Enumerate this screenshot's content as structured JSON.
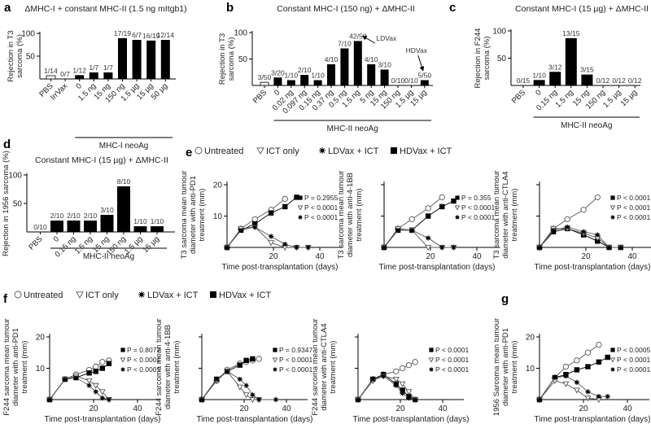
{
  "chart_data": [
    {
      "id": "a",
      "type": "bar",
      "panel_label": "a",
      "title": "ΔMHC-I + constant MHC-II (1.5 ng mItgb1)",
      "ylabel": [
        "Rejection in T3",
        "sarcoma (%)"
      ],
      "ylim": [
        0,
        100
      ],
      "yticks": [
        50,
        100
      ],
      "categories": [
        "PBS",
        "IrrVax",
        "0",
        "1.5 ng",
        "15 ng",
        "150 ng",
        "1.5 µg",
        "15 µg",
        "50 µg"
      ],
      "values": [
        7.1,
        0,
        8.3,
        14.3,
        14.3,
        89.5,
        85.7,
        84.2,
        85.7
      ],
      "labels": [
        "1/14",
        "0/7",
        "1/12",
        "1/7",
        "1/7",
        "17/19",
        "6/7",
        "16/19",
        "12/14"
      ],
      "open_bars": [
        "PBS"
      ],
      "group_label": "MHC-I neoAg",
      "group_from": 2
    },
    {
      "id": "b",
      "type": "bar",
      "panel_label": "b",
      "title": "Constant MHC-I (150 ng) + ΔMHC-II",
      "ylabel": [
        "Rejection in T3",
        "sarcoma (%)"
      ],
      "ylim": [
        0,
        100
      ],
      "yticks": [
        50,
        100
      ],
      "categories": [
        "PBS",
        "0",
        "0.02 ng",
        "0.097 ng",
        "0.15 ng",
        "0.37 ng",
        "0.5 ng",
        "1.5 ng",
        "5 ng",
        "15 ng",
        "150 ng",
        "1.5 µg",
        "15 µg"
      ],
      "values": [
        6,
        15,
        10,
        20,
        10,
        40,
        70,
        84,
        40,
        30,
        0,
        0,
        10
      ],
      "labels": [
        "3/50",
        "3/20",
        "1/10",
        "2/10",
        "1/10",
        "4/10",
        "7/10",
        "42/50",
        "4/10",
        "3/10",
        "0/10",
        "0/10",
        "5/50"
      ],
      "open_bars": [
        "PBS"
      ],
      "annotations": [
        {
          "text": "LDVax",
          "category": "1.5 ng"
        },
        {
          "text": "HDVax",
          "category": "15 µg"
        }
      ],
      "group_label": "MHC-II neoAg",
      "group_from": 1
    },
    {
      "id": "c",
      "type": "bar",
      "panel_label": "c",
      "title": "Constant MHC-I (15 µg) + ΔMHC-II",
      "ylabel": [
        "Rejection in F244",
        "sarcoma (%)"
      ],
      "ylim": [
        0,
        100
      ],
      "yticks": [
        50,
        100
      ],
      "categories": [
        "PBS",
        "0",
        "0.15 ng",
        "1.5 ng",
        "15 ng",
        "150 ng",
        "1.5 µg",
        "15 µg"
      ],
      "values": [
        0,
        10,
        25,
        86.7,
        20,
        0,
        0,
        0
      ],
      "labels": [
        "0/15",
        "1/10",
        "3/12",
        "13/15",
        "3/15",
        "0/12",
        "0/12",
        "0/12"
      ],
      "open_bars": [],
      "group_label": "MHC-II neoAg",
      "group_from": 1
    },
    {
      "id": "d",
      "type": "bar",
      "panel_label": "d",
      "title": "Constant MHC-I (15 µg) + ΔMHC-II",
      "ylabel": [
        "Rejection in 1956 sarcoma (%)"
      ],
      "ylim": [
        0,
        100
      ],
      "yticks": [
        50,
        100
      ],
      "categories": [
        "PBS",
        "0",
        "0.15 ng",
        "1.5 ng",
        "15 ng",
        "150 ng",
        "1.5 µg",
        "15 µg"
      ],
      "values": [
        0,
        20,
        20,
        20,
        30,
        80,
        10,
        10
      ],
      "labels": [
        "0/10",
        "2/10",
        "2/10",
        "2/10",
        "3/10",
        "8/10",
        "1/10",
        "1/10"
      ],
      "open_bars": [],
      "group_label": "MHC-II neoAg",
      "group_from": 1
    },
    {
      "id": "e1",
      "type": "line",
      "panel_label": "e",
      "ylabel": [
        "T3 sarcoma mean tumour",
        "diameter with anti-PD1",
        "treatment (mm)"
      ],
      "xlabel": "Time post-transplantation (days)",
      "xlim": [
        0,
        50
      ],
      "ylim": [
        0,
        20
      ],
      "xticks": [
        20,
        40
      ],
      "yticks": [
        10,
        20
      ],
      "ytick_labels": true,
      "series": [
        {
          "key": "untreated",
          "x": [
            0,
            6,
            12,
            19,
            25
          ],
          "y": [
            0,
            6,
            9,
            12,
            15.5
          ]
        },
        {
          "key": "hdvax",
          "x": [
            0,
            6,
            12,
            19,
            25,
            30
          ],
          "y": [
            0,
            5.5,
            7.5,
            11,
            13,
            16
          ]
        },
        {
          "key": "ict",
          "x": [
            0,
            6,
            12,
            19,
            25,
            30,
            35
          ],
          "y": [
            0,
            6,
            6.5,
            1.5,
            0,
            0,
            0
          ]
        },
        {
          "key": "ldvax",
          "x": [
            0,
            6,
            12,
            19,
            25,
            30,
            35
          ],
          "y": [
            0,
            5.5,
            6.5,
            3.5,
            1,
            0,
            0
          ]
        }
      ],
      "pvalues": [
        {
          "key": "hdvax",
          "text": "P = 0.2955"
        },
        {
          "key": "ict",
          "text": "P < 0.0001"
        },
        {
          "key": "ldvax",
          "text": "P < 0.0001"
        }
      ]
    },
    {
      "id": "e2",
      "type": "line",
      "ylabel": [
        "T3 sarcoma mean tumour",
        "diameter with anti-4-1BB",
        "treatment (mm)"
      ],
      "xlabel": "Time post-transplantation (days)",
      "xlim": [
        0,
        50
      ],
      "ylim": [
        0,
        20
      ],
      "xticks": [
        20,
        40
      ],
      "yticks": [
        10,
        20
      ],
      "ytick_labels": false,
      "series": [
        {
          "key": "untreated",
          "x": [
            0,
            6,
            12,
            19,
            25
          ],
          "y": [
            0,
            6,
            9,
            12.5,
            16
          ]
        },
        {
          "key": "hdvax",
          "x": [
            0,
            6,
            12,
            19,
            25,
            30
          ],
          "y": [
            0,
            5.5,
            5.5,
            10,
            13,
            14.8
          ]
        },
        {
          "key": "ict",
          "x": [
            0,
            6,
            12,
            19,
            25,
            30
          ],
          "y": [
            0,
            6,
            5.5,
            0,
            0,
            0
          ]
        },
        {
          "key": "ldvax",
          "x": [
            0,
            6,
            12,
            19,
            25,
            30
          ],
          "y": [
            0,
            5.5,
            5.5,
            3,
            0,
            0
          ]
        }
      ],
      "pvalues": [
        {
          "key": "hdvax",
          "text": "P = 0.355"
        },
        {
          "key": "ict",
          "text": "P < 0.0001"
        },
        {
          "key": "ldvax",
          "text": "P < 0.0001"
        }
      ]
    },
    {
      "id": "e3",
      "type": "line",
      "ylabel": [
        "T3 sarcoma mean tumour",
        "diameter with anti-CTLA4",
        "treatment (mm)"
      ],
      "xlabel": "Time post-transplantation (days)",
      "xlim": [
        0,
        50
      ],
      "ylim": [
        0,
        20
      ],
      "xticks": [
        20,
        40
      ],
      "yticks": [
        10,
        20
      ],
      "ytick_labels": false,
      "series": [
        {
          "key": "untreated",
          "x": [
            0,
            6,
            12,
            19,
            25
          ],
          "y": [
            0,
            6,
            9,
            12,
            16
          ]
        },
        {
          "key": "hdvax",
          "x": [
            0,
            6,
            12,
            19,
            25,
            30,
            35
          ],
          "y": [
            0,
            5,
            6,
            4,
            2,
            0,
            0
          ]
        },
        {
          "key": "ict",
          "x": [
            0,
            6,
            12,
            19,
            25,
            30,
            35
          ],
          "y": [
            0,
            6,
            6,
            4.5,
            3,
            0,
            0
          ]
        },
        {
          "key": "ldvax",
          "x": [
            0,
            6,
            12,
            19,
            25,
            30,
            35
          ],
          "y": [
            0,
            5.5,
            6.5,
            5,
            4,
            0,
            0
          ]
        }
      ],
      "pvalues": [
        {
          "key": "hdvax",
          "text": "P < 0.0001"
        },
        {
          "key": "ict",
          "text": "P < 0.0001"
        },
        {
          "key": "ldvax",
          "text": "P < 0.0001"
        }
      ]
    },
    {
      "id": "f1",
      "type": "line",
      "panel_label": "f",
      "ylabel": [
        "F244 sarcoma mean tumour",
        "diameter with anti-PD1",
        "treatment (mm)"
      ],
      "xlabel": "Time post-transplantation (days)",
      "xlim": [
        0,
        50
      ],
      "ylim": [
        0,
        20
      ],
      "xticks": [
        20,
        40
      ],
      "yticks": [
        10,
        20
      ],
      "ytick_labels": true,
      "series": [
        {
          "key": "untreated",
          "x": [
            0,
            7,
            12,
            18,
            21,
            24,
            27
          ],
          "y": [
            0,
            6.5,
            8,
            9.5,
            10.5,
            12,
            12.5
          ]
        },
        {
          "key": "hdvax",
          "x": [
            0,
            7,
            12,
            18,
            21,
            24,
            27
          ],
          "y": [
            0,
            6.5,
            7,
            8.5,
            9,
            10,
            11.5
          ]
        },
        {
          "key": "ict",
          "x": [
            0,
            7,
            12,
            18,
            21,
            24,
            27
          ],
          "y": [
            0,
            6.5,
            7.5,
            6,
            4.5,
            2.5,
            0
          ]
        },
        {
          "key": "ldvax",
          "x": [
            0,
            7,
            12,
            18,
            21,
            24,
            27
          ],
          "y": [
            0,
            6.5,
            7,
            4.5,
            2.5,
            0.5,
            0
          ]
        }
      ],
      "pvalues": [
        {
          "key": "hdvax",
          "text": "P = 0.8077"
        },
        {
          "key": "ict",
          "text": "P < 0.0001"
        },
        {
          "key": "ldvax",
          "text": "P < 0.0001"
        }
      ]
    },
    {
      "id": "f2",
      "type": "line",
      "ylabel": [
        "F244 sarcoma mean tumour",
        "diameter with anti-4-1BB",
        "treatment (mm)"
      ],
      "xlabel": "Time post-transplantation (days)",
      "xlim": [
        0,
        50
      ],
      "ylim": [
        0,
        20
      ],
      "xticks": [
        20,
        40
      ],
      "yticks": [
        10,
        20
      ],
      "ytick_labels": false,
      "series": [
        {
          "key": "untreated",
          "x": [
            0,
            7,
            12,
            18,
            21,
            24,
            27
          ],
          "y": [
            0,
            6,
            9.5,
            11.5,
            12,
            12.5,
            13
          ]
        },
        {
          "key": "hdvax",
          "x": [
            0,
            7,
            12,
            18,
            21,
            24
          ],
          "y": [
            0,
            6.5,
            9,
            11,
            12.5,
            13
          ]
        },
        {
          "key": "ict",
          "x": [
            0,
            7,
            12,
            18,
            21,
            24,
            27
          ],
          "y": [
            0,
            6,
            9,
            4,
            1.5,
            0,
            0
          ]
        },
        {
          "key": "ldvax",
          "x": [
            0,
            7,
            12,
            18,
            21,
            24,
            27,
            35
          ],
          "y": [
            0,
            6.5,
            9,
            6.5,
            4.5,
            1.5,
            0,
            0
          ]
        }
      ],
      "pvalues": [
        {
          "key": "hdvax",
          "text": "P = 0.9347"
        },
        {
          "key": "ict",
          "text": "P < 0.0001"
        },
        {
          "key": "ldvax",
          "text": "P < 0.0001"
        }
      ]
    },
    {
      "id": "f3",
      "type": "line",
      "ylabel": [
        "F244 sarcoma mean tumour",
        "diameter with anti-CTLA4",
        "treatment (mm)"
      ],
      "xlabel": "Time post-transplantation (days)",
      "xlim": [
        0,
        50
      ],
      "ylim": [
        0,
        20
      ],
      "xticks": [
        20,
        40
      ],
      "yticks": [
        10,
        20
      ],
      "ytick_labels": false,
      "series": [
        {
          "key": "untreated",
          "x": [
            0,
            7,
            12,
            18,
            21,
            24,
            27
          ],
          "y": [
            0,
            6.5,
            8,
            9,
            10,
            11,
            12
          ]
        },
        {
          "key": "hdvax",
          "x": [
            0,
            7,
            12,
            18,
            21,
            24,
            27
          ],
          "y": [
            0,
            6.5,
            8,
            5,
            3,
            1,
            0
          ]
        },
        {
          "key": "ict",
          "x": [
            0,
            7,
            12,
            18,
            21,
            24,
            27
          ],
          "y": [
            0,
            6,
            7.5,
            6.5,
            5,
            2.5,
            0
          ]
        },
        {
          "key": "ldvax",
          "x": [
            0,
            7,
            12,
            18,
            21,
            24,
            27
          ],
          "y": [
            0,
            6.5,
            7.5,
            4.5,
            2,
            0.5,
            0
          ]
        }
      ],
      "pvalues": [
        {
          "key": "hdvax",
          "text": "P < 0.0001"
        },
        {
          "key": "ict",
          "text": "P < 0.0001"
        },
        {
          "key": "ldvax",
          "text": "P < 0.0001"
        }
      ]
    },
    {
      "id": "g",
      "type": "line",
      "panel_label": "g",
      "ylabel": [
        "1956 Sarcoma mean tumour",
        "diameter with anti-PD1",
        "treatment (mm)"
      ],
      "xlabel": "Time post-transplantation (days)",
      "xlim": [
        0,
        50
      ],
      "ylim": [
        0,
        20
      ],
      "xticks": [
        20,
        40
      ],
      "yticks": [
        10,
        20
      ],
      "ytick_labels": true,
      "series": [
        {
          "key": "untreated",
          "x": [
            0,
            7,
            12,
            17,
            22,
            27
          ],
          "y": [
            0,
            7,
            10.5,
            12.5,
            15,
            17.5
          ]
        },
        {
          "key": "hdvax",
          "x": [
            0,
            7,
            12,
            17,
            22,
            27,
            31
          ],
          "y": [
            0,
            7,
            8,
            9.5,
            10.5,
            12,
            13.5
          ]
        },
        {
          "key": "ict",
          "x": [
            0,
            7,
            12,
            17,
            22,
            27
          ],
          "y": [
            0,
            6,
            5,
            3,
            0.5,
            0
          ]
        },
        {
          "key": "ldvax",
          "x": [
            0,
            7,
            12,
            17,
            22,
            27,
            31
          ],
          "y": [
            0,
            7,
            7.5,
            5.5,
            2.5,
            1,
            1
          ]
        }
      ],
      "pvalues": [
        {
          "key": "hdvax",
          "text": "P < 0.0005"
        },
        {
          "key": "ict",
          "text": "P < 0.0001"
        },
        {
          "key": "ldvax",
          "text": "P < 0.0001"
        }
      ]
    }
  ],
  "legend": {
    "items": [
      {
        "key": "untreated",
        "label": "Untreated",
        "marker": "open-circle"
      },
      {
        "key": "ict",
        "label": "ICT only",
        "marker": "open-triangle-down"
      },
      {
        "key": "ldvax",
        "label": "LDVax + ICT",
        "marker": "asterisk"
      },
      {
        "key": "hdvax",
        "label": "HDVax + ICT",
        "marker": "filled-square"
      }
    ]
  },
  "colors": {
    "bar": "#000000",
    "axis": "#000000",
    "line": "#555555",
    "text": "#222222"
  }
}
